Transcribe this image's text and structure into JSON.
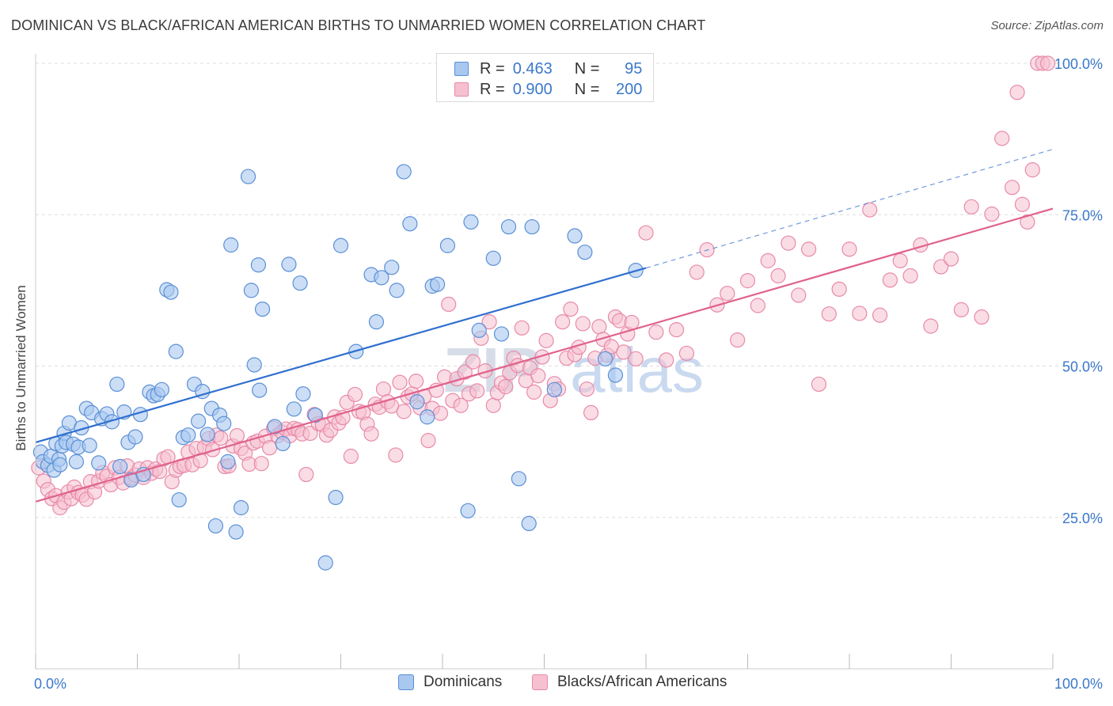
{
  "header": {
    "title": "DOMINICAN VS BLACK/AFRICAN AMERICAN BIRTHS TO UNMARRIED WOMEN CORRELATION CHART",
    "source": "Source: ZipAtlas.com"
  },
  "legend_top": {
    "rows": [
      {
        "r_label": "R =",
        "r_value": "0.463",
        "n_label": "N =",
        "n_value": "95"
      },
      {
        "r_label": "R =",
        "r_value": "0.900",
        "n_label": "N =",
        "n_value": "200"
      }
    ]
  },
  "watermark": {
    "zip": "ZIP",
    "atlas": "atlas"
  },
  "colors": {
    "blue_fill": "#a9c8f0",
    "blue_stroke": "#5b8fd6",
    "blue_line": "#2f6fcf",
    "pink_fill": "#f6c0d0",
    "pink_stroke": "#e88aa8",
    "pink_line": "#e0628c",
    "tick_label": "#3b78c9",
    "grid": "#dddddd"
  },
  "chart_data": {
    "type": "scatter",
    "title": "DOMINICAN VS BLACK/AFRICAN AMERICAN BIRTHS TO UNMARRIED WOMEN CORRELATION CHART",
    "xlabel": "",
    "ylabel": "Births to Unmarried Women",
    "xlim": [
      0,
      100
    ],
    "ylim": [
      0,
      102
    ],
    "x_tick_labels": [
      "0.0%",
      "100.0%"
    ],
    "y_tick_labels": [
      "25.0%",
      "50.0%",
      "75.0%",
      "100.0%"
    ],
    "y_ticks": [
      25,
      50,
      75,
      100
    ],
    "grid": true,
    "legend_position": "bottom-center",
    "series": [
      {
        "name": "Dominicans",
        "r": 0.463,
        "n": 95,
        "trend": {
          "x0": 0,
          "y0": 37.4,
          "x1": 60,
          "y1": 66.2,
          "dash_to_x": 100,
          "dash_to_y": 85.8
        },
        "points": [
          [
            0.5,
            35.8
          ],
          [
            0.7,
            34.2
          ],
          [
            1.2,
            33.6
          ],
          [
            1.5,
            35.1
          ],
          [
            1.8,
            32.8
          ],
          [
            2.3,
            34.6
          ],
          [
            2.4,
            33.7
          ],
          [
            2.0,
            37.2
          ],
          [
            2.6,
            36.8
          ],
          [
            2.8,
            38.9
          ],
          [
            3.0,
            37.4
          ],
          [
            3.3,
            40.6
          ],
          [
            3.7,
            37.1
          ],
          [
            4.0,
            34.2
          ],
          [
            4.2,
            36.6
          ],
          [
            4.5,
            39.8
          ],
          [
            5.0,
            43.0
          ],
          [
            5.3,
            36.9
          ],
          [
            5.5,
            42.3
          ],
          [
            6.2,
            34.0
          ],
          [
            6.5,
            41.3
          ],
          [
            7.0,
            42.1
          ],
          [
            7.5,
            40.8
          ],
          [
            8.0,
            47.0
          ],
          [
            8.3,
            33.4
          ],
          [
            8.7,
            42.4
          ],
          [
            9.1,
            37.4
          ],
          [
            9.4,
            31.2
          ],
          [
            9.8,
            38.3
          ],
          [
            10.3,
            42.0
          ],
          [
            10.6,
            32.1
          ],
          [
            11.2,
            45.7
          ],
          [
            11.6,
            45.1
          ],
          [
            12.0,
            45.3
          ],
          [
            12.4,
            46.1
          ],
          [
            12.9,
            62.6
          ],
          [
            13.3,
            62.2
          ],
          [
            13.8,
            52.4
          ],
          [
            14.1,
            27.9
          ],
          [
            14.5,
            38.2
          ],
          [
            15.0,
            38.6
          ],
          [
            15.6,
            47.0
          ],
          [
            16.0,
            40.9
          ],
          [
            16.4,
            45.8
          ],
          [
            16.9,
            38.7
          ],
          [
            17.3,
            43.0
          ],
          [
            17.7,
            23.6
          ],
          [
            18.1,
            41.9
          ],
          [
            18.5,
            40.5
          ],
          [
            18.9,
            34.2
          ],
          [
            19.2,
            70.0
          ],
          [
            19.7,
            22.6
          ],
          [
            20.2,
            26.6
          ],
          [
            20.9,
            81.3
          ],
          [
            21.2,
            62.5
          ],
          [
            21.5,
            50.2
          ],
          [
            21.9,
            66.7
          ],
          [
            22.3,
            59.4
          ],
          [
            22.0,
            46.0
          ],
          [
            23.5,
            40.0
          ],
          [
            24.3,
            37.2
          ],
          [
            24.9,
            66.8
          ],
          [
            25.4,
            42.9
          ],
          [
            26.0,
            63.7
          ],
          [
            26.3,
            45.4
          ],
          [
            27.5,
            41.9
          ],
          [
            28.5,
            17.5
          ],
          [
            29.5,
            28.3
          ],
          [
            30.0,
            69.9
          ],
          [
            31.5,
            52.4
          ],
          [
            33.0,
            65.1
          ],
          [
            33.5,
            57.3
          ],
          [
            34.0,
            64.6
          ],
          [
            35.0,
            66.3
          ],
          [
            35.5,
            62.5
          ],
          [
            36.2,
            82.1
          ],
          [
            36.8,
            73.5
          ],
          [
            37.5,
            44.1
          ],
          [
            38.5,
            41.6
          ],
          [
            39.0,
            63.2
          ],
          [
            39.5,
            63.5
          ],
          [
            40.5,
            69.9
          ],
          [
            42.5,
            26.1
          ],
          [
            42.8,
            73.8
          ],
          [
            43.6,
            55.9
          ],
          [
            45.0,
            67.8
          ],
          [
            45.8,
            55.3
          ],
          [
            46.5,
            73.0
          ],
          [
            47.5,
            31.4
          ],
          [
            48.5,
            24.0
          ],
          [
            48.8,
            73.0
          ],
          [
            51.0,
            46.1
          ],
          [
            53.0,
            71.5
          ],
          [
            54.0,
            68.8
          ],
          [
            56.0,
            51.2
          ],
          [
            57.0,
            48.5
          ],
          [
            59.0,
            65.8
          ]
        ]
      },
      {
        "name": "Blacks/African Americans",
        "r": 0.9,
        "n": 200,
        "trend": {
          "x0": 0,
          "y0": 27.6,
          "x1": 100,
          "y1": 76.0
        },
        "points": [
          [
            0.3,
            33.2
          ],
          [
            0.8,
            31.0
          ],
          [
            1.2,
            29.6
          ],
          [
            1.6,
            28.1
          ],
          [
            2.0,
            28.6
          ],
          [
            2.4,
            26.6
          ],
          [
            2.8,
            27.5
          ],
          [
            3.2,
            29.2
          ],
          [
            3.5,
            28.1
          ],
          [
            3.8,
            30.0
          ],
          [
            4.2,
            29.1
          ],
          [
            4.6,
            28.7
          ],
          [
            5.0,
            28.0
          ],
          [
            5.4,
            30.9
          ],
          [
            5.8,
            29.2
          ],
          [
            6.2,
            31.0
          ],
          [
            6.6,
            32.4
          ],
          [
            7.0,
            31.8
          ],
          [
            7.4,
            30.4
          ],
          [
            7.8,
            33.2
          ],
          [
            8.2,
            31.6
          ],
          [
            8.6,
            30.7
          ],
          [
            9.0,
            33.5
          ],
          [
            9.4,
            31.5
          ],
          [
            9.8,
            32.0
          ],
          [
            10.2,
            33.0
          ],
          [
            10.6,
            31.6
          ],
          [
            11.0,
            33.2
          ],
          [
            11.4,
            32.3
          ],
          [
            11.8,
            33.0
          ],
          [
            12.2,
            32.6
          ],
          [
            12.6,
            34.7
          ],
          [
            13.0,
            35.0
          ],
          [
            13.4,
            30.9
          ],
          [
            13.8,
            32.8
          ],
          [
            14.2,
            33.4
          ],
          [
            14.6,
            33.6
          ],
          [
            15.0,
            35.8
          ],
          [
            15.4,
            33.7
          ],
          [
            15.8,
            36.4
          ],
          [
            16.2,
            34.4
          ],
          [
            16.6,
            36.6
          ],
          [
            17.0,
            38.0
          ],
          [
            17.4,
            36.2
          ],
          [
            17.8,
            38.6
          ],
          [
            18.2,
            38.1
          ],
          [
            18.6,
            33.4
          ],
          [
            19.0,
            33.5
          ],
          [
            19.4,
            36.8
          ],
          [
            19.8,
            38.5
          ],
          [
            20.2,
            36.4
          ],
          [
            20.6,
            35.6
          ],
          [
            21.0,
            33.8
          ],
          [
            21.4,
            37.3
          ],
          [
            21.8,
            37.6
          ],
          [
            22.2,
            33.9
          ],
          [
            22.6,
            38.4
          ],
          [
            23.0,
            36.5
          ],
          [
            23.4,
            39.7
          ],
          [
            23.8,
            38.5
          ],
          [
            24.2,
            39.1
          ],
          [
            24.6,
            39.6
          ],
          [
            25.0,
            38.5
          ],
          [
            25.4,
            39.7
          ],
          [
            25.8,
            39.5
          ],
          [
            26.2,
            38.8
          ],
          [
            26.6,
            32.1
          ],
          [
            27.0,
            38.9
          ],
          [
            27.4,
            42.0
          ],
          [
            27.8,
            40.5
          ],
          [
            28.2,
            40.3
          ],
          [
            28.6,
            38.6
          ],
          [
            29.0,
            39.4
          ],
          [
            29.4,
            41.6
          ],
          [
            29.8,
            40.6
          ],
          [
            30.2,
            41.5
          ],
          [
            30.6,
            44.0
          ],
          [
            31.0,
            35.1
          ],
          [
            31.4,
            45.3
          ],
          [
            31.8,
            42.5
          ],
          [
            32.2,
            42.3
          ],
          [
            32.6,
            40.4
          ],
          [
            33.0,
            38.8
          ],
          [
            33.4,
            43.7
          ],
          [
            33.8,
            43.2
          ],
          [
            34.2,
            46.2
          ],
          [
            34.6,
            44.1
          ],
          [
            35.0,
            43.4
          ],
          [
            35.4,
            35.3
          ],
          [
            35.8,
            47.3
          ],
          [
            36.2,
            42.5
          ],
          [
            36.6,
            44.9
          ],
          [
            37.0,
            45.4
          ],
          [
            37.4,
            47.5
          ],
          [
            37.8,
            43.1
          ],
          [
            38.2,
            45.0
          ],
          [
            38.6,
            37.7
          ],
          [
            39.0,
            43.0
          ],
          [
            39.4,
            46.0
          ],
          [
            39.8,
            42.2
          ],
          [
            40.2,
            48.2
          ],
          [
            40.6,
            60.2
          ],
          [
            41.0,
            44.3
          ],
          [
            41.4,
            47.9
          ],
          [
            41.8,
            43.5
          ],
          [
            42.2,
            49.0
          ],
          [
            42.6,
            45.4
          ],
          [
            43.0,
            50.7
          ],
          [
            43.4,
            45.9
          ],
          [
            43.8,
            54.6
          ],
          [
            44.2,
            49.2
          ],
          [
            44.6,
            57.3
          ],
          [
            45.0,
            43.5
          ],
          [
            45.4,
            45.6
          ],
          [
            45.8,
            47.2
          ],
          [
            46.2,
            46.6
          ],
          [
            46.6,
            48.9
          ],
          [
            47.0,
            51.3
          ],
          [
            47.4,
            50.1
          ],
          [
            47.8,
            56.3
          ],
          [
            48.2,
            47.6
          ],
          [
            48.6,
            49.7
          ],
          [
            49.0,
            45.7
          ],
          [
            49.4,
            48.4
          ],
          [
            49.8,
            51.5
          ],
          [
            50.2,
            54.2
          ],
          [
            50.6,
            44.3
          ],
          [
            51.0,
            47.1
          ],
          [
            51.4,
            46.2
          ],
          [
            51.8,
            57.3
          ],
          [
            52.2,
            51.3
          ],
          [
            52.6,
            59.4
          ],
          [
            53.0,
            51.9
          ],
          [
            53.4,
            53.1
          ],
          [
            53.8,
            57.0
          ],
          [
            54.2,
            46.2
          ],
          [
            54.6,
            42.3
          ],
          [
            55.0,
            51.3
          ],
          [
            55.4,
            56.5
          ],
          [
            55.8,
            54.4
          ],
          [
            56.2,
            51.8
          ],
          [
            56.6,
            53.2
          ],
          [
            57.0,
            58.1
          ],
          [
            57.4,
            57.5
          ],
          [
            57.8,
            52.3
          ],
          [
            58.2,
            55.3
          ],
          [
            58.6,
            57.2
          ],
          [
            59.0,
            51.2
          ],
          [
            60.0,
            72.0
          ],
          [
            61.0,
            55.6
          ],
          [
            62.0,
            51.0
          ],
          [
            63.0,
            56.0
          ],
          [
            64.0,
            52.1
          ],
          [
            65.0,
            65.5
          ],
          [
            66.0,
            69.2
          ],
          [
            67.0,
            60.1
          ],
          [
            68.0,
            62.0
          ],
          [
            69.0,
            54.3
          ],
          [
            70.0,
            64.1
          ],
          [
            71.0,
            60.0
          ],
          [
            72.0,
            67.4
          ],
          [
            73.0,
            64.9
          ],
          [
            74.0,
            70.3
          ],
          [
            75.0,
            61.7
          ],
          [
            76.0,
            69.3
          ],
          [
            77.0,
            47.0
          ],
          [
            78.0,
            58.6
          ],
          [
            79.0,
            62.7
          ],
          [
            80.0,
            69.3
          ],
          [
            81.0,
            58.7
          ],
          [
            82.0,
            75.8
          ],
          [
            83.0,
            58.4
          ],
          [
            84.0,
            64.2
          ],
          [
            85.0,
            67.4
          ],
          [
            86.0,
            64.9
          ],
          [
            87.0,
            70.0
          ],
          [
            88.0,
            56.6
          ],
          [
            89.0,
            66.4
          ],
          [
            90.0,
            67.7
          ],
          [
            91.0,
            59.3
          ],
          [
            92.0,
            76.3
          ],
          [
            93.0,
            58.1
          ],
          [
            94.0,
            75.1
          ],
          [
            95.0,
            87.6
          ],
          [
            96.0,
            79.5
          ],
          [
            97.0,
            76.7
          ],
          [
            98.0,
            82.4
          ],
          [
            98.5,
            100.0
          ],
          [
            99.0,
            100.0
          ],
          [
            99.5,
            100.0
          ],
          [
            96.5,
            95.2
          ],
          [
            97.5,
            73.8
          ]
        ]
      }
    ]
  }
}
